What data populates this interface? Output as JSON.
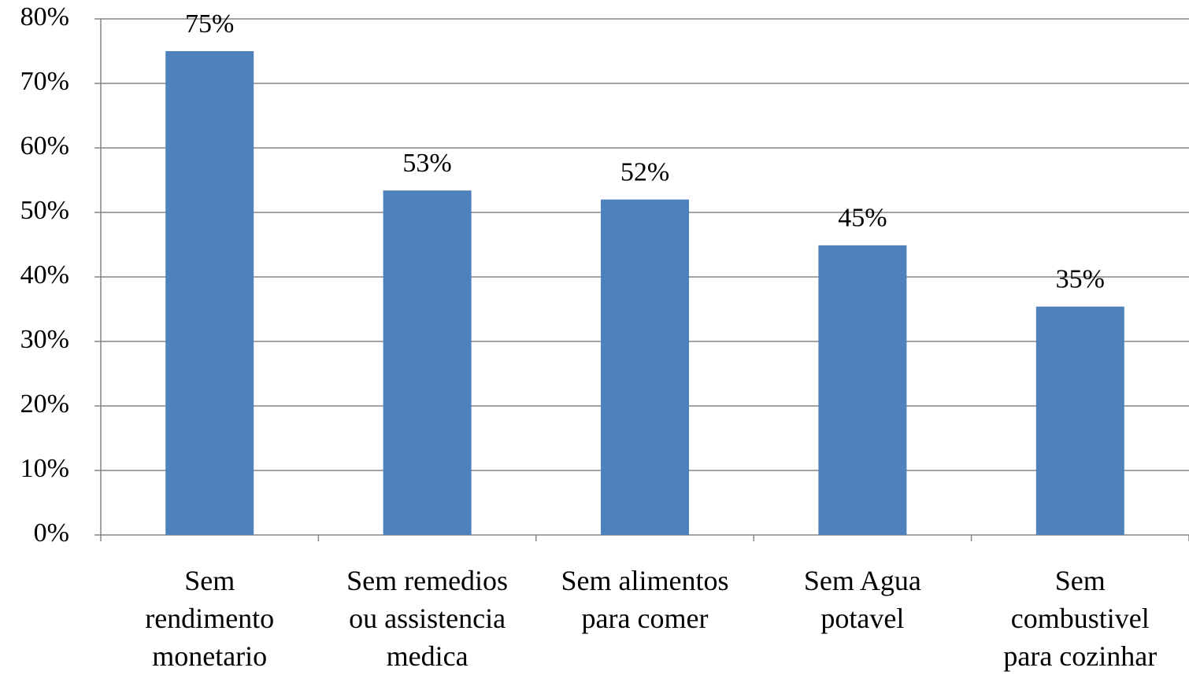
{
  "chart_data": {
    "type": "bar",
    "categories": [
      [
        "Sem",
        "rendimento",
        "monetario"
      ],
      [
        "Sem remedios",
        "ou assistencia",
        "medica"
      ],
      [
        "Sem alimentos",
        "para comer"
      ],
      [
        "Sem Agua",
        "potavel"
      ],
      [
        "Sem",
        "combustivel",
        "para cozinhar"
      ]
    ],
    "values": [
      75,
      53.4,
      52,
      44.9,
      35.4
    ],
    "value_labels": [
      "75%",
      "53%",
      "52%",
      "45%",
      "35%"
    ],
    "color": "#4f81bd",
    "ylim": [
      0,
      80
    ],
    "yticks": [
      {
        "value": 0,
        "label": "0%"
      },
      {
        "value": 10,
        "label": "10%"
      },
      {
        "value": 20,
        "label": "20%"
      },
      {
        "value": 30,
        "label": "30%"
      },
      {
        "value": 40,
        "label": "40%"
      },
      {
        "value": 50,
        "label": "50%"
      },
      {
        "value": 60,
        "label": "60%"
      },
      {
        "value": 70,
        "label": "70%"
      },
      {
        "value": 80,
        "label": "80%"
      }
    ],
    "grid": true
  }
}
